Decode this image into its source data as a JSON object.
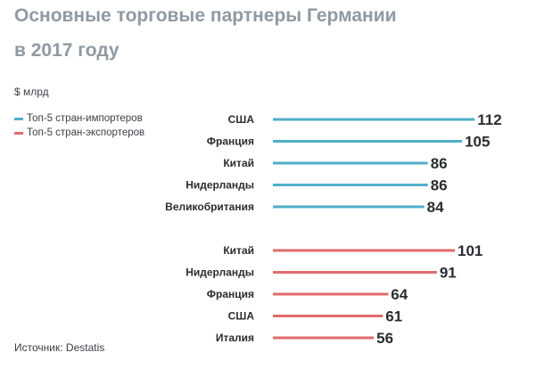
{
  "title_line1": "Основные торговые партнеры Германии",
  "title_line2": "в 2017 году",
  "unit": "$ млрд",
  "legend": [
    {
      "label": "Топ-5 стран-импортеров",
      "color": "#4fafc9"
    },
    {
      "label": "Топ-5 стран-экспортеров",
      "color": "#e06b6b"
    }
  ],
  "source": "Источник: Destatis",
  "chart_data": {
    "type": "bar",
    "orientation": "horizontal",
    "series": [
      {
        "name": "Топ-5 стран-импортеров",
        "color": "#4fafc9",
        "categories": [
          "США",
          "Франция",
          "Китай",
          "Нидерланды",
          "Великобритания"
        ],
        "values": [
          112,
          105,
          86,
          86,
          84
        ]
      },
      {
        "name": "Топ-5 стран-экспортеров",
        "color": "#e06b6b",
        "categories": [
          "Китай",
          "Нидерланды",
          "Франция",
          "США",
          "Италия"
        ],
        "values": [
          101,
          91,
          64,
          61,
          56
        ]
      }
    ],
    "ylabel": "$ млрд",
    "grid": false
  }
}
